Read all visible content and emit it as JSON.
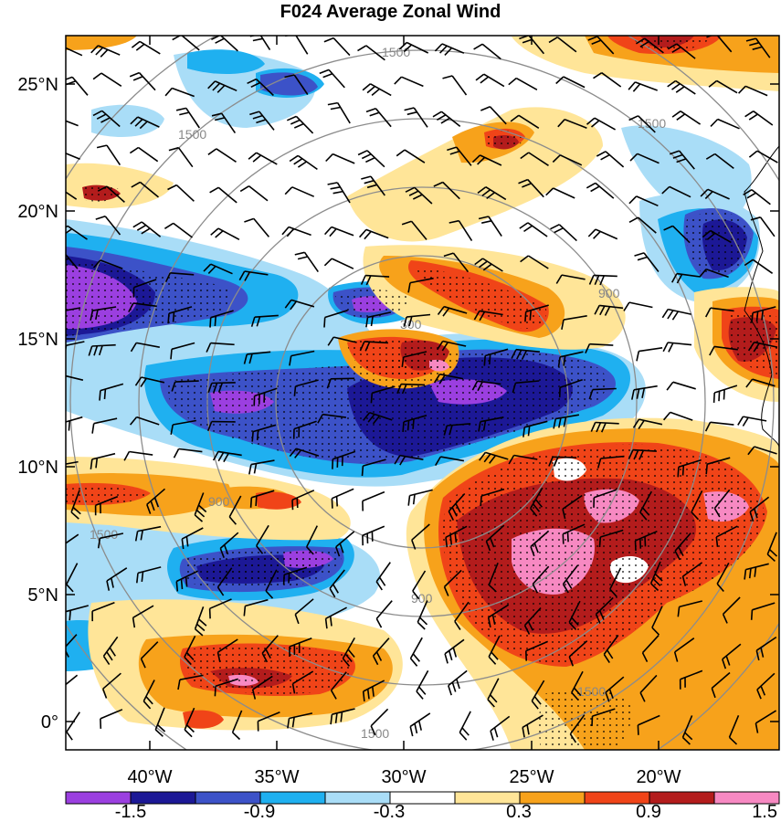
{
  "title": "F024 Average Zonal Wind",
  "map": {
    "lon_labels": [
      "40°W",
      "35°W",
      "30°W",
      "25°W",
      "20°W"
    ],
    "lat_labels": [
      "25°N",
      "20°N",
      "15°N",
      "10°N",
      "5°N",
      "0°"
    ],
    "range_ring_labels": [
      "300",
      "900",
      "1500"
    ],
    "range_ring_color": "#8c8c8c",
    "has_wind_barbs": true,
    "has_stipple_significance": true
  },
  "colorbar": {
    "colors": [
      "#9b3fe0",
      "#1c1896",
      "#3c52c8",
      "#1fb0f0",
      "#a9ddf7",
      "#ffffff",
      "#ffe598",
      "#f7a21b",
      "#f04418",
      "#b31c1c",
      "#f789c2"
    ],
    "tick_labels": [
      "-1.5",
      "-0.9",
      "-0.3",
      "0.3",
      "0.9",
      "1.5"
    ]
  }
}
